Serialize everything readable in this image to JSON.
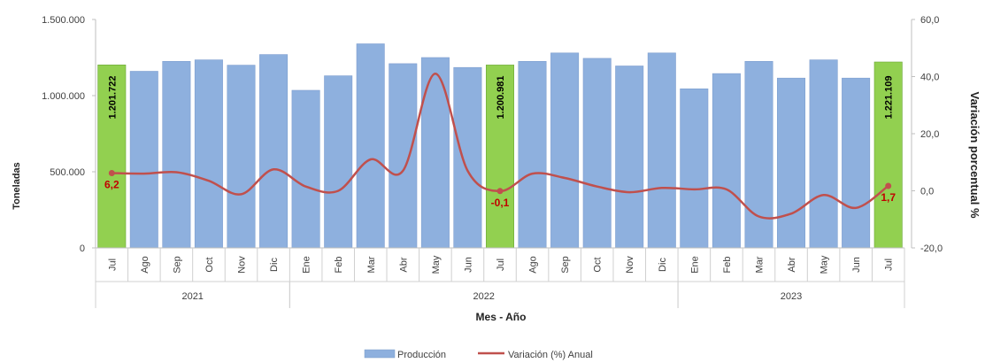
{
  "chart_data": {
    "type": "bar",
    "title": "",
    "xlabel": "Mes - Año",
    "ylabel": "Toneladas",
    "y2label": "Variación porcentual %",
    "ylim": [
      0,
      1500000
    ],
    "y2lim": [
      -20,
      60
    ],
    "y_ticks": [
      "1.500.000",
      "1.000.000",
      "500.000",
      "0"
    ],
    "y2_ticks": [
      "60,0",
      "40,0",
      "20,0",
      "0,0",
      "-20,0"
    ],
    "categories": [
      "Jul",
      "Ago",
      "Sep",
      "Oct",
      "Nov",
      "Dic",
      "Ene",
      "Feb",
      "Mar",
      "Abr",
      "May",
      "Jun",
      "Jul",
      "Ago",
      "Sep",
      "Oct",
      "Nov",
      "Dic",
      "Ene",
      "Feb",
      "Mar",
      "Abr",
      "May",
      "Jun",
      "Jul"
    ],
    "year_groups": [
      {
        "label": "2021",
        "count": 6
      },
      {
        "label": "2022",
        "count": 12
      },
      {
        "label": "2023",
        "count": 7
      }
    ],
    "series": [
      {
        "name": "Producción",
        "type": "bar",
        "color": "#8eb0de",
        "highlight_color": "#92d050",
        "highlight_indices": [
          0,
          12,
          24
        ],
        "values": [
          1201722,
          1160000,
          1225000,
          1235000,
          1200000,
          1270000,
          1035000,
          1130000,
          1340000,
          1210000,
          1250000,
          1185000,
          1200981,
          1225000,
          1280000,
          1245000,
          1195000,
          1280000,
          1045000,
          1145000,
          1225000,
          1115000,
          1235000,
          1115000,
          1221109
        ]
      },
      {
        "name": "Variación (%) Anual",
        "type": "line",
        "axis": "secondary",
        "color": "#c0504d",
        "values": [
          6.2,
          6.0,
          6.5,
          3.5,
          -1.2,
          7.5,
          1.5,
          0.0,
          11.0,
          7.0,
          41.0,
          7.0,
          -0.1,
          6.0,
          4.5,
          1.5,
          -0.5,
          1.0,
          0.5,
          0.5,
          -9.0,
          -8.0,
          -1.5,
          -6.0,
          1.7
        ]
      }
    ],
    "bar_labels": [
      {
        "index": 0,
        "text": "1.201.722"
      },
      {
        "index": 12,
        "text": "1.200.981"
      },
      {
        "index": 24,
        "text": "1.221.109"
      }
    ],
    "line_labels": [
      {
        "index": 0,
        "text": "6,2"
      },
      {
        "index": 12,
        "text": "-0,1"
      },
      {
        "index": 24,
        "text": "1,7"
      }
    ],
    "grid": false,
    "legend_position": "bottom-center"
  }
}
